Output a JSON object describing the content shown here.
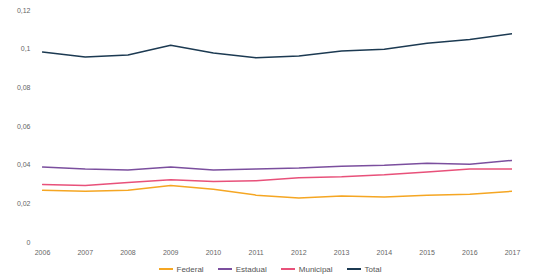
{
  "chart_data": {
    "type": "line",
    "x": [
      2006,
      2007,
      2008,
      2009,
      2010,
      2011,
      2012,
      2013,
      2014,
      2015,
      2016,
      2017
    ],
    "xlim": [
      2006,
      2017
    ],
    "xticks": [
      2006,
      2007,
      2008,
      2009,
      2010,
      2011,
      2012,
      2013,
      2014,
      2015,
      2016,
      2017
    ],
    "ylim": [
      0,
      0.12
    ],
    "yticks": [
      0,
      {
        "value": 0.02,
        "label": "0,02"
      },
      {
        "value": 0.04,
        "label": "0,04"
      },
      {
        "value": 0.06,
        "label": "0,06"
      },
      {
        "value": 0.08,
        "label": "0,08"
      },
      {
        "value": 0.1,
        "label": "0,1"
      },
      {
        "value": 0.12,
        "label": "0,12"
      }
    ],
    "grid": false,
    "legend": "bottom",
    "series": [
      {
        "name": "Federal",
        "color": "#f5a623",
        "values": [
          0.027,
          0.0265,
          0.027,
          0.0295,
          0.0275,
          0.0245,
          0.023,
          0.024,
          0.0235,
          0.0245,
          0.025,
          0.0265
        ]
      },
      {
        "name": "Estadual",
        "color": "#7b4f9e",
        "values": [
          0.039,
          0.038,
          0.0375,
          0.039,
          0.0375,
          0.038,
          0.0385,
          0.0395,
          0.04,
          0.041,
          0.0405,
          0.0425
        ]
      },
      {
        "name": "Municipal",
        "color": "#e8517a",
        "values": [
          0.03,
          0.0295,
          0.031,
          0.0325,
          0.0315,
          0.032,
          0.0335,
          0.034,
          0.035,
          0.0365,
          0.038,
          0.038
        ]
      },
      {
        "name": "Total",
        "color": "#1c3a52",
        "values": [
          0.0985,
          0.096,
          0.097,
          0.102,
          0.098,
          0.0955,
          0.0965,
          0.099,
          0.1,
          0.103,
          0.105,
          0.108
        ]
      }
    ]
  }
}
